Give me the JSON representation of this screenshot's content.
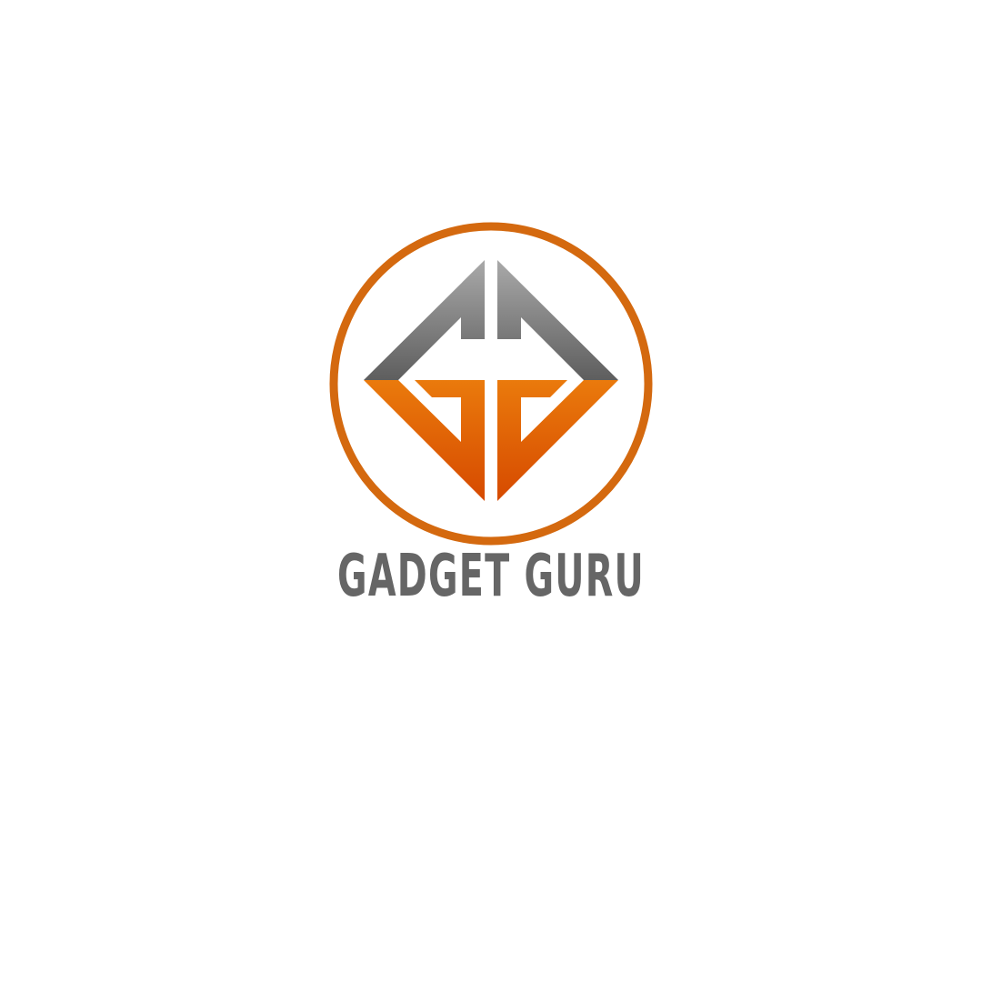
{
  "brand": {
    "name": "GADGET GURU"
  },
  "colors": {
    "ring": "#d4690f",
    "text": "#666666",
    "gray_top": "#a9a9a9",
    "gray_bottom": "#5e5e5e",
    "orange_top": "#ea7a0c",
    "orange_bottom": "#d64a00"
  },
  "icons": {
    "emblem": "gg-monogram-diamond-icon"
  }
}
